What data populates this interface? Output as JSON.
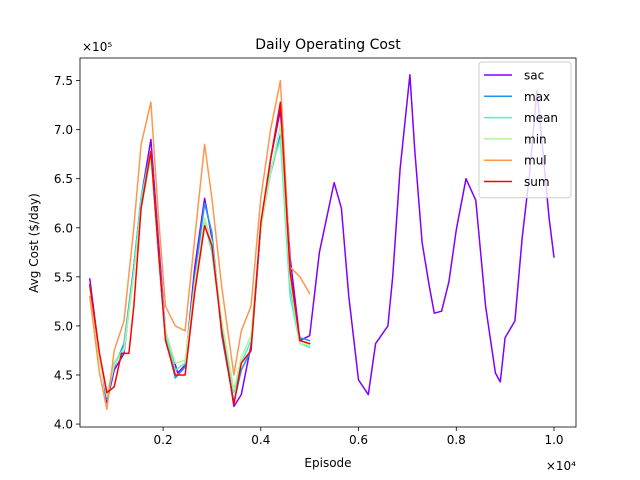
{
  "chart_data": {
    "type": "line",
    "title": "Daily Operating Cost",
    "xlabel": "Episode",
    "ylabel": "Avg Cost ($/day)",
    "x_scale_label": "×10⁴",
    "y_scale_label": "×10⁵",
    "xlim": [
      0.03,
      1.045
    ],
    "ylim": [
      3.97,
      7.73
    ],
    "x_ticks": [
      0.2,
      0.4,
      0.6,
      0.8,
      1.0
    ],
    "x_tick_labels": [
      "0.2",
      "0.4",
      "0.6",
      "0.8",
      "1.0"
    ],
    "y_ticks": [
      4.0,
      4.5,
      5.0,
      5.5,
      6.0,
      6.5,
      7.0,
      7.5
    ],
    "y_tick_labels": [
      "4.0",
      "4.5",
      "5.0",
      "5.5",
      "6.0",
      "6.5",
      "7.0",
      "7.5"
    ],
    "grid": false,
    "legend_position": "top-right",
    "series": [
      {
        "name": "sac",
        "color": "#8000ff",
        "points": [
          [
            0.05,
            5.48
          ],
          [
            0.07,
            4.7
          ],
          [
            0.085,
            4.22
          ],
          [
            0.1,
            4.55
          ],
          [
            0.12,
            4.72
          ],
          [
            0.14,
            5.6
          ],
          [
            0.155,
            6.3
          ],
          [
            0.175,
            6.9
          ],
          [
            0.19,
            5.9
          ],
          [
            0.205,
            4.95
          ],
          [
            0.23,
            4.52
          ],
          [
            0.245,
            4.6
          ],
          [
            0.265,
            5.6
          ],
          [
            0.285,
            6.3
          ],
          [
            0.3,
            5.9
          ],
          [
            0.32,
            5.0
          ],
          [
            0.345,
            4.18
          ],
          [
            0.36,
            4.3
          ],
          [
            0.38,
            4.8
          ],
          [
            0.4,
            6.0
          ],
          [
            0.42,
            6.7
          ],
          [
            0.44,
            7.2
          ],
          [
            0.46,
            5.7
          ],
          [
            0.48,
            4.85
          ],
          [
            0.5,
            4.9
          ],
          [
            0.52,
            5.75
          ],
          [
            0.55,
            6.46
          ],
          [
            0.565,
            6.2
          ],
          [
            0.58,
            5.3
          ],
          [
            0.6,
            4.45
          ],
          [
            0.62,
            4.3
          ],
          [
            0.635,
            4.82
          ],
          [
            0.66,
            5.0
          ],
          [
            0.67,
            5.5
          ],
          [
            0.685,
            6.6
          ],
          [
            0.705,
            7.56
          ],
          [
            0.715,
            6.8
          ],
          [
            0.73,
            5.85
          ],
          [
            0.745,
            5.4
          ],
          [
            0.755,
            5.13
          ],
          [
            0.77,
            5.15
          ],
          [
            0.785,
            5.45
          ],
          [
            0.8,
            5.98
          ],
          [
            0.82,
            6.5
          ],
          [
            0.84,
            6.28
          ],
          [
            0.86,
            5.2
          ],
          [
            0.88,
            4.52
          ],
          [
            0.89,
            4.43
          ],
          [
            0.9,
            4.88
          ],
          [
            0.92,
            5.05
          ],
          [
            0.935,
            5.9
          ],
          [
            0.95,
            6.55
          ],
          [
            0.965,
            7.4
          ],
          [
            0.975,
            6.9
          ],
          [
            0.99,
            6.1
          ],
          [
            1.0,
            5.7
          ]
        ]
      },
      {
        "name": "max",
        "color": "#1996f3",
        "points": [
          [
            0.05,
            5.42
          ],
          [
            0.07,
            4.7
          ],
          [
            0.085,
            4.25
          ],
          [
            0.1,
            4.58
          ],
          [
            0.12,
            4.82
          ],
          [
            0.14,
            5.6
          ],
          [
            0.155,
            6.3
          ],
          [
            0.175,
            6.78
          ],
          [
            0.19,
            5.75
          ],
          [
            0.205,
            4.88
          ],
          [
            0.225,
            4.47
          ],
          [
            0.245,
            4.58
          ],
          [
            0.265,
            5.5
          ],
          [
            0.285,
            6.25
          ],
          [
            0.3,
            5.95
          ],
          [
            0.32,
            4.9
          ],
          [
            0.345,
            4.22
          ],
          [
            0.36,
            4.55
          ],
          [
            0.38,
            4.75
          ],
          [
            0.4,
            6.0
          ],
          [
            0.42,
            6.55
          ],
          [
            0.44,
            6.95
          ],
          [
            0.46,
            5.4
          ],
          [
            0.48,
            4.88
          ],
          [
            0.5,
            4.85
          ]
        ]
      },
      {
        "name": "mean",
        "color": "#4df3ce",
        "points": [
          [
            0.05,
            5.4
          ],
          [
            0.07,
            4.68
          ],
          [
            0.085,
            4.3
          ],
          [
            0.1,
            4.62
          ],
          [
            0.12,
            4.78
          ],
          [
            0.14,
            5.55
          ],
          [
            0.155,
            6.3
          ],
          [
            0.175,
            6.78
          ],
          [
            0.19,
            5.8
          ],
          [
            0.205,
            4.92
          ],
          [
            0.225,
            4.55
          ],
          [
            0.245,
            4.62
          ],
          [
            0.265,
            5.4
          ],
          [
            0.285,
            6.05
          ],
          [
            0.3,
            5.75
          ],
          [
            0.32,
            4.98
          ],
          [
            0.345,
            4.32
          ],
          [
            0.36,
            4.62
          ],
          [
            0.38,
            4.85
          ],
          [
            0.4,
            6.0
          ],
          [
            0.42,
            6.6
          ],
          [
            0.44,
            6.9
          ],
          [
            0.46,
            5.3
          ],
          [
            0.48,
            4.82
          ],
          [
            0.5,
            4.78
          ]
        ]
      },
      {
        "name": "min",
        "color": "#b2f396",
        "points": [
          [
            0.05,
            5.38
          ],
          [
            0.07,
            4.65
          ],
          [
            0.085,
            4.28
          ],
          [
            0.1,
            4.6
          ],
          [
            0.12,
            4.75
          ],
          [
            0.14,
            5.52
          ],
          [
            0.155,
            6.2
          ],
          [
            0.175,
            6.72
          ],
          [
            0.19,
            5.75
          ],
          [
            0.205,
            4.95
          ],
          [
            0.225,
            4.62
          ],
          [
            0.245,
            4.65
          ],
          [
            0.265,
            5.45
          ],
          [
            0.285,
            6.1
          ],
          [
            0.3,
            5.85
          ],
          [
            0.32,
            5.05
          ],
          [
            0.345,
            4.35
          ],
          [
            0.36,
            4.68
          ],
          [
            0.38,
            4.9
          ],
          [
            0.4,
            6.0
          ],
          [
            0.42,
            6.55
          ],
          [
            0.44,
            7.05
          ],
          [
            0.46,
            5.45
          ],
          [
            0.48,
            4.82
          ],
          [
            0.5,
            4.8
          ]
        ]
      },
      {
        "name": "mul",
        "color": "#ff964f",
        "points": [
          [
            0.05,
            5.3
          ],
          [
            0.07,
            4.52
          ],
          [
            0.085,
            4.15
          ],
          [
            0.1,
            4.75
          ],
          [
            0.12,
            5.05
          ],
          [
            0.14,
            6.0
          ],
          [
            0.155,
            6.85
          ],
          [
            0.175,
            7.28
          ],
          [
            0.19,
            6.15
          ],
          [
            0.205,
            5.2
          ],
          [
            0.225,
            5.0
          ],
          [
            0.245,
            4.95
          ],
          [
            0.265,
            5.9
          ],
          [
            0.285,
            6.85
          ],
          [
            0.3,
            6.3
          ],
          [
            0.32,
            5.4
          ],
          [
            0.345,
            4.5
          ],
          [
            0.36,
            4.95
          ],
          [
            0.38,
            5.2
          ],
          [
            0.4,
            6.3
          ],
          [
            0.42,
            7.0
          ],
          [
            0.44,
            7.5
          ],
          [
            0.46,
            5.6
          ],
          [
            0.48,
            5.5
          ],
          [
            0.5,
            5.33
          ]
        ]
      },
      {
        "name": "sum",
        "color": "#ff0000",
        "points": [
          [
            0.05,
            5.42
          ],
          [
            0.07,
            4.72
          ],
          [
            0.085,
            4.32
          ],
          [
            0.1,
            4.38
          ],
          [
            0.115,
            4.72
          ],
          [
            0.13,
            4.72
          ],
          [
            0.14,
            5.2
          ],
          [
            0.155,
            6.2
          ],
          [
            0.175,
            6.78
          ],
          [
            0.19,
            5.8
          ],
          [
            0.205,
            4.85
          ],
          [
            0.225,
            4.5
          ],
          [
            0.245,
            4.5
          ],
          [
            0.265,
            5.35
          ],
          [
            0.285,
            6.02
          ],
          [
            0.3,
            5.82
          ],
          [
            0.32,
            4.95
          ],
          [
            0.345,
            4.2
          ],
          [
            0.36,
            4.62
          ],
          [
            0.38,
            4.75
          ],
          [
            0.4,
            6.05
          ],
          [
            0.42,
            6.7
          ],
          [
            0.44,
            7.28
          ],
          [
            0.46,
            5.55
          ],
          [
            0.48,
            4.85
          ],
          [
            0.5,
            4.82
          ]
        ]
      }
    ]
  }
}
